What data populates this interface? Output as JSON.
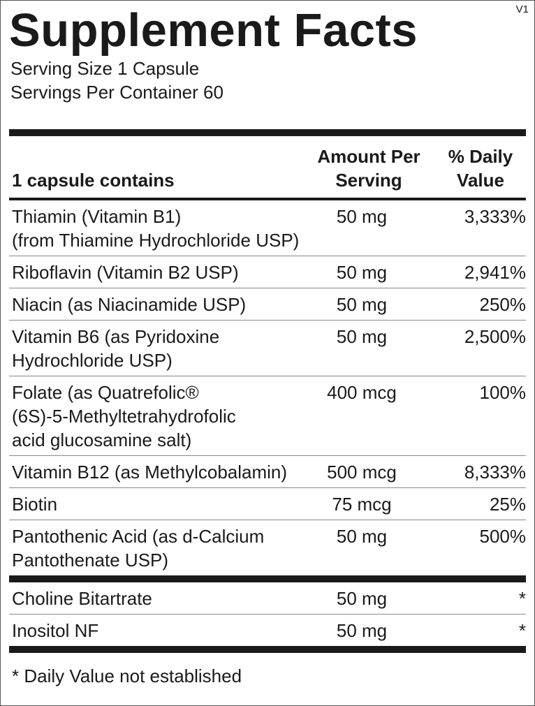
{
  "version": "V1",
  "title": "Supplement Facts",
  "serving_size": "Serving Size 1 Capsule",
  "servings_per_container": "Servings Per Container 60",
  "table": {
    "header": {
      "name": "1 capsule contains",
      "amount": [
        "Amount Per",
        "Serving"
      ],
      "daily_value": [
        "% Daily",
        "Value"
      ]
    },
    "sections": [
      {
        "rows": [
          {
            "name": [
              "Thiamin (Vitamin B1)",
              "(from Thiamine Hydrochloride USP)"
            ],
            "amount": "50 mg",
            "daily_value": "3,333%"
          },
          {
            "name": [
              "Riboflavin (Vitamin B2 USP)"
            ],
            "amount": "50 mg",
            "daily_value": "2,941%"
          },
          {
            "name": [
              "Niacin (as Niacinamide USP)"
            ],
            "amount": "50 mg",
            "daily_value": "250%"
          },
          {
            "name": [
              "Vitamin B6 (as Pyridoxine",
              "Hydrochloride USP)"
            ],
            "amount": "50 mg",
            "daily_value": "2,500%"
          },
          {
            "name": [
              "Folate (as Quatrefolic®",
              "(6S)-5-Methyltetrahydrofolic",
              "acid glucosamine salt)"
            ],
            "amount": "400 mcg",
            "daily_value": "100%"
          },
          {
            "name": [
              "Vitamin B12 (as Methylcobalamin)"
            ],
            "amount": "500 mcg",
            "daily_value": "8,333%"
          },
          {
            "name": [
              "Biotin"
            ],
            "amount": "75 mcg",
            "daily_value": "25%"
          },
          {
            "name": [
              "Pantothenic Acid (as d-Calcium",
              "Pantothenate USP)"
            ],
            "amount": "50 mg",
            "daily_value": "500%"
          }
        ]
      },
      {
        "rows": [
          {
            "name": [
              "Choline Bitartrate"
            ],
            "amount": "50 mg",
            "daily_value": "*"
          },
          {
            "name": [
              "Inositol NF"
            ],
            "amount": "50 mg",
            "daily_value": "*"
          }
        ]
      }
    ]
  },
  "footnote": "* Daily Value not established"
}
